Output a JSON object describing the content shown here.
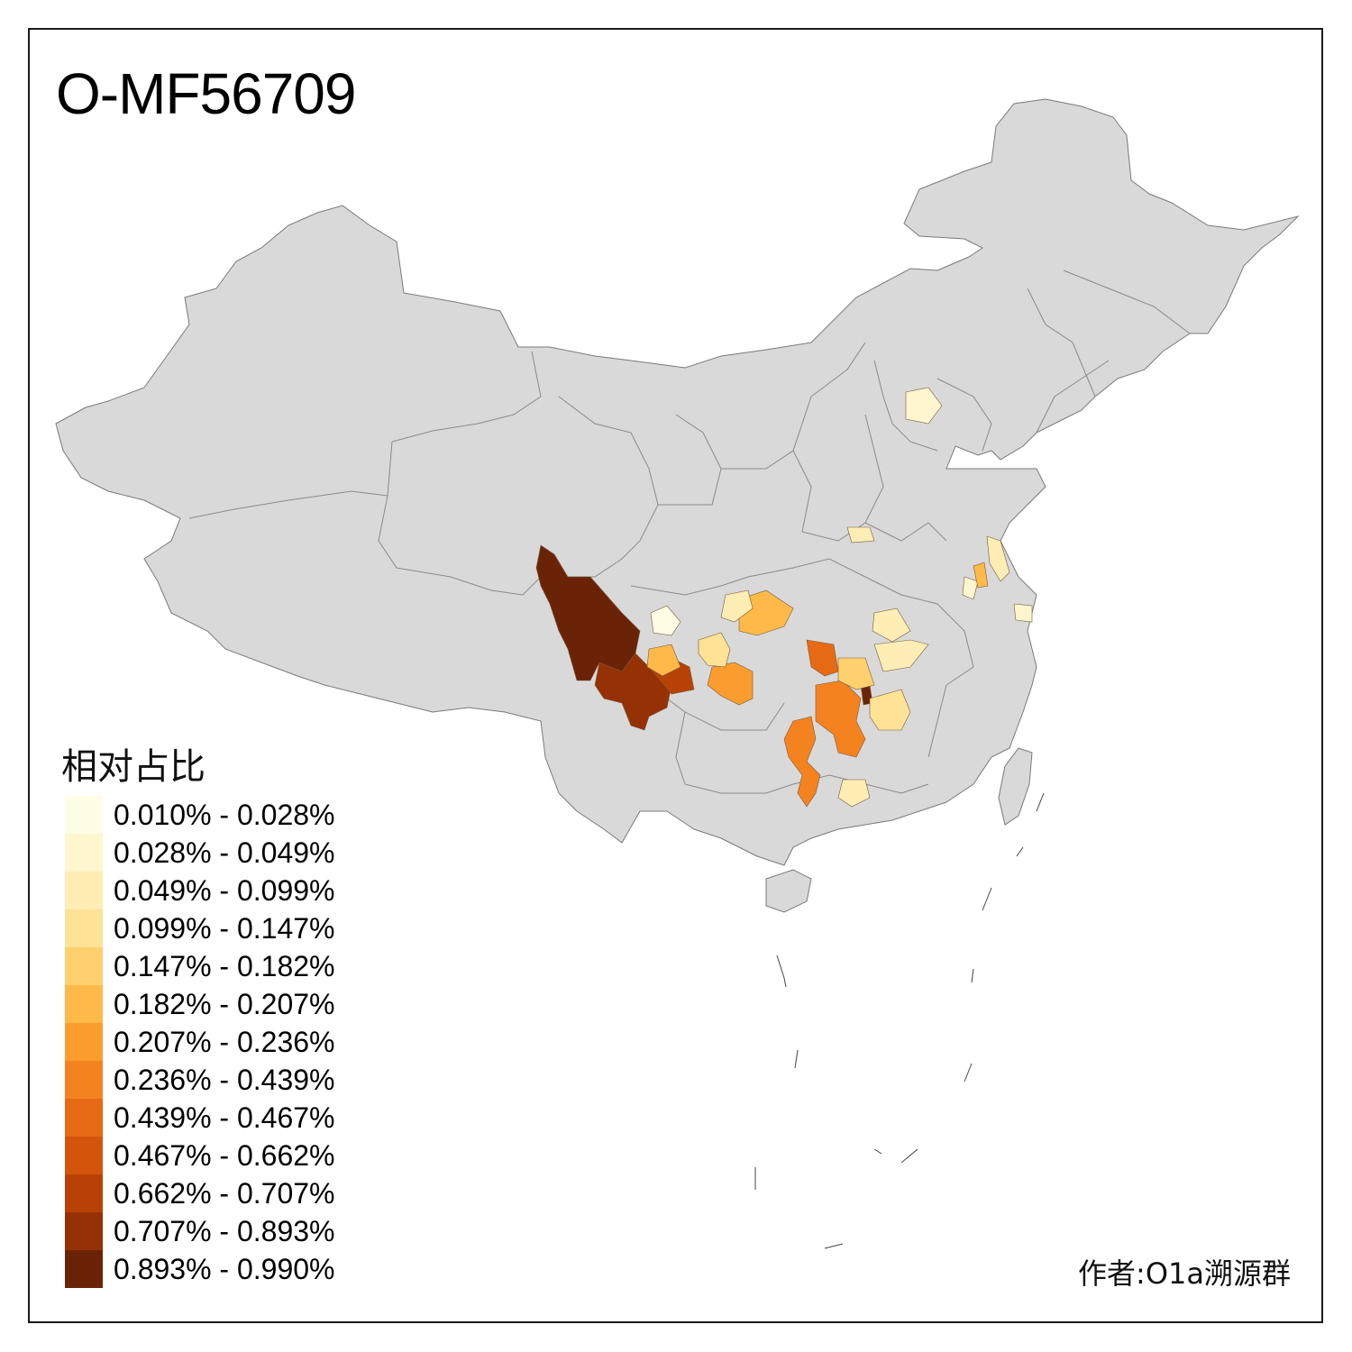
{
  "title": "O-MF56709",
  "legend": {
    "title": "相对占比",
    "items": [
      {
        "label": "0.010% - 0.028%",
        "color": "#FFFDE6"
      },
      {
        "label": "0.028% - 0.049%",
        "color": "#FFF6CF"
      },
      {
        "label": "0.049% - 0.099%",
        "color": "#FEEDB4"
      },
      {
        "label": "0.099% - 0.147%",
        "color": "#FEE296"
      },
      {
        "label": "0.147% - 0.182%",
        "color": "#FED06E"
      },
      {
        "label": "0.182% - 0.207%",
        "color": "#FEB949"
      },
      {
        "label": "0.207% - 0.236%",
        "color": "#FB9D2E"
      },
      {
        "label": "0.236% - 0.439%",
        "color": "#F4831F"
      },
      {
        "label": "0.439% - 0.467%",
        "color": "#E66A13"
      },
      {
        "label": "0.467% - 0.662%",
        "color": "#D3540A"
      },
      {
        "label": "0.662% - 0.707%",
        "color": "#B84106"
      },
      {
        "label": "0.707% - 0.893%",
        "color": "#953105"
      },
      {
        "label": "0.893% - 0.990%",
        "color": "#6B2307"
      }
    ]
  },
  "author": "作者:O1a溯源群",
  "colors": {
    "base_region": "#D9D9D9",
    "border": "#888888",
    "no_data": "#D9D9D9"
  }
}
